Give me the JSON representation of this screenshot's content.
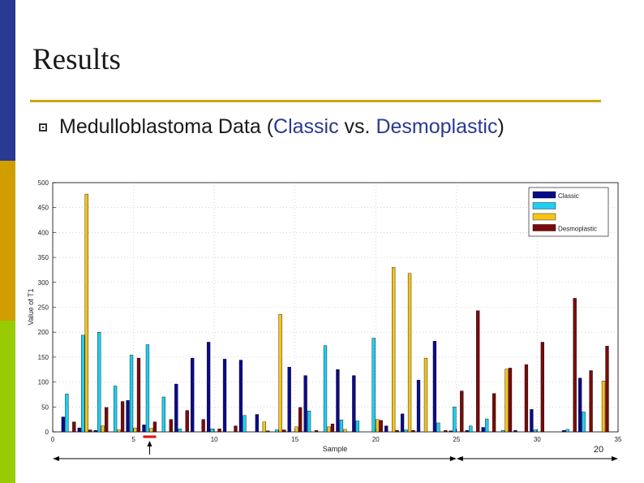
{
  "slide": {
    "title": "Results",
    "bullet_prefix": "Medulloblastoma Data (",
    "bullet_class1": "Classic",
    "bullet_mid": "  vs. ",
    "bullet_class2": "Desmoplastic",
    "bullet_suffix": ")",
    "annotation": "20"
  },
  "colors": {
    "stripe_top": "#2a3991",
    "stripe_mid": "#d19e00",
    "stripe_bottom": "#99cc00",
    "rule": "#c9a700",
    "highlight_text": "#2a3991",
    "marker": "#e01010"
  },
  "chart_data": {
    "type": "bar",
    "xlabel": "Sample",
    "ylabel": "Value of T1",
    "xlim": [
      0,
      35
    ],
    "ylim": [
      0,
      500
    ],
    "xticks": [
      0,
      5,
      10,
      15,
      20,
      25,
      30,
      35
    ],
    "yticks": [
      0,
      50,
      100,
      150,
      200,
      250,
      300,
      350,
      400,
      450,
      500
    ],
    "xtick_labels": [
      "0",
      "5",
      "10",
      "15",
      "20",
      "25",
      "30",
      "35"
    ],
    "ytick_labels": [
      "0",
      "50",
      "100",
      "150",
      "200",
      "250",
      "300",
      "350",
      "400",
      "450",
      "500"
    ],
    "grid": true,
    "legend_position": "top-right",
    "categories": [
      1,
      2,
      3,
      4,
      5,
      6,
      7,
      8,
      9,
      10,
      11,
      12,
      13,
      14,
      15,
      16,
      17,
      18,
      19,
      20,
      21,
      22,
      23,
      24,
      25,
      26,
      27,
      28,
      29,
      30,
      31,
      32,
      33,
      34
    ],
    "series": [
      {
        "name": "Classic",
        "color": "#0b0b8a",
        "values": [
          30,
          8,
          3,
          0,
          63,
          14,
          0,
          96,
          148,
          180,
          146,
          144,
          35,
          0,
          130,
          113,
          0,
          125,
          113,
          0,
          12,
          36,
          104,
          182,
          2,
          3,
          9,
          0,
          3,
          45,
          0,
          3,
          108,
          0
        ]
      },
      {
        "name": "",
        "color": "#1ecff2",
        "values": [
          76,
          194,
          200,
          92,
          154,
          175,
          70,
          6,
          0,
          6,
          0,
          33,
          0,
          4,
          0,
          42,
          173,
          24,
          22,
          188,
          0,
          4,
          0,
          18,
          50,
          12,
          26,
          3,
          0,
          4,
          0,
          5,
          40,
          0
        ]
      },
      {
        "name": "",
        "color": "#f5c518",
        "values": [
          0,
          477,
          12,
          4,
          8,
          7,
          0,
          0,
          0,
          0,
          0,
          0,
          20,
          236,
          10,
          0,
          10,
          5,
          0,
          25,
          330,
          318,
          148,
          0,
          0,
          0,
          0,
          126,
          0,
          0,
          0,
          0,
          0,
          102
        ]
      },
      {
        "name": "Desmoplastic",
        "color": "#7a0a0a",
        "values": [
          20,
          4,
          49,
          61,
          148,
          20,
          25,
          43,
          25,
          6,
          12,
          0,
          2,
          4,
          49,
          3,
          16,
          0,
          0,
          23,
          3,
          3,
          0,
          3,
          82,
          243,
          77,
          128,
          135,
          180,
          0,
          268,
          123,
          172
        ]
      }
    ],
    "range_arrows": [
      {
        "from": 0,
        "to": 25
      },
      {
        "from": 25,
        "to": 35
      }
    ],
    "marker_sample": 6
  }
}
